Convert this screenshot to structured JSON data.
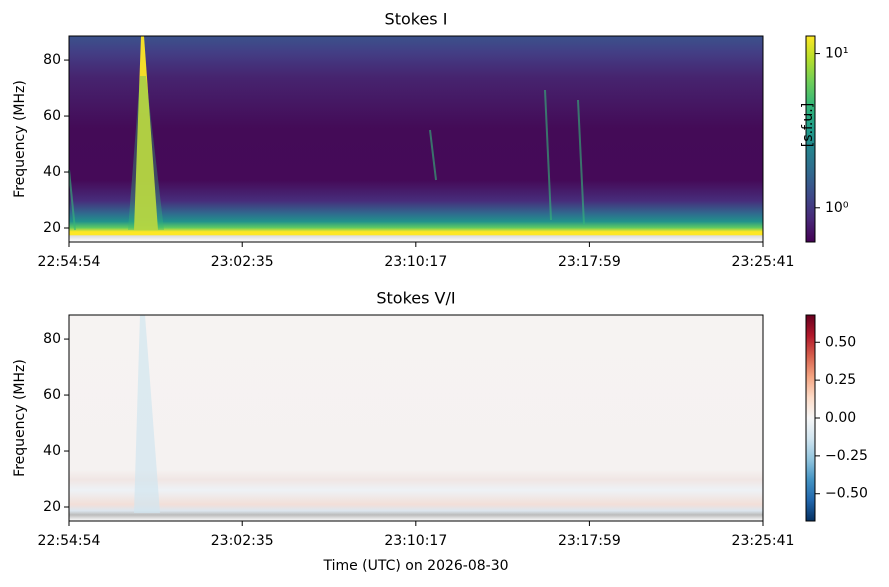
{
  "chart_data": [
    {
      "type": "spectrogram",
      "title": "Stokes I",
      "y_label": "Frequency (MHz)",
      "xlim": [
        "22:54:54",
        "23:25:41"
      ],
      "xticks": [
        "22:54:54",
        "23:02:35",
        "23:10:17",
        "23:17:59",
        "23:25:41"
      ],
      "ylim": [
        15,
        88.6
      ],
      "yticks": [
        20,
        40,
        60,
        80
      ],
      "colormap": "viridis",
      "color_scale": "log",
      "clim": [
        0.6,
        13
      ],
      "colorbar_label": "[s.f.u.]",
      "colorbar_ticks": [
        {
          "value": 1,
          "label": "10⁰"
        },
        {
          "value": 10,
          "label": "10¹"
        }
      ]
    },
    {
      "type": "spectrogram",
      "title": "Stokes V/I",
      "y_label": "Frequency (MHz)",
      "x_label": "Time (UTC) on 2026-08-30",
      "xlim": [
        "22:54:54",
        "23:25:41"
      ],
      "xticks": [
        "22:54:54",
        "23:02:35",
        "23:10:17",
        "23:17:59",
        "23:25:41"
      ],
      "ylim": [
        15,
        88.6
      ],
      "yticks": [
        20,
        40,
        60,
        80
      ],
      "colormap": "RdBu_r",
      "color_scale": "linear",
      "clim": [
        -0.68,
        0.68
      ],
      "colorbar_ticks": [
        {
          "value": -0.5,
          "label": "−0.50"
        },
        {
          "value": -0.25,
          "label": "−0.25"
        },
        {
          "value": 0,
          "label": "0.00"
        },
        {
          "value": 0.25,
          "label": "0.25"
        },
        {
          "value": 0.5,
          "label": "0.50"
        }
      ]
    }
  ]
}
